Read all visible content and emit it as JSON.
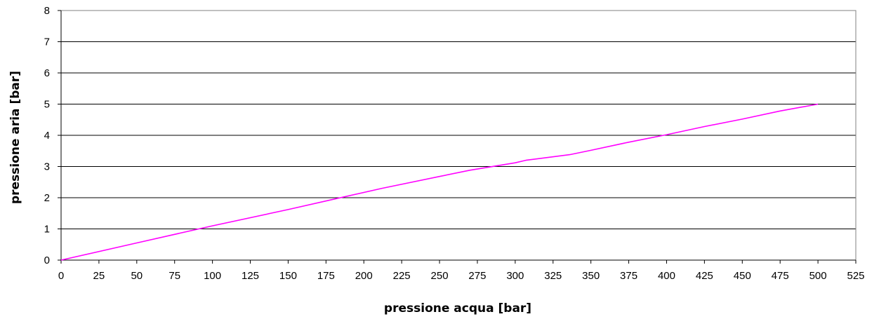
{
  "chart_data": {
    "type": "line",
    "xlabel": "pressione acqua [bar]",
    "ylabel": "pressione aria [bar]",
    "xlim": [
      0,
      525
    ],
    "ylim": [
      0,
      8
    ],
    "x_ticks": [
      0,
      25,
      50,
      75,
      100,
      125,
      150,
      175,
      200,
      225,
      250,
      275,
      300,
      325,
      350,
      375,
      400,
      425,
      450,
      475,
      500,
      525
    ],
    "x_tick_labels": [
      "0",
      "25",
      "50",
      "75",
      "100",
      "125",
      "150",
      "175",
      "200",
      "225",
      "250",
      "275",
      "300",
      "325",
      "350",
      "375",
      "400",
      "425",
      "450",
      "475",
      "500",
      "525"
    ],
    "y_ticks": [
      0,
      1,
      2,
      3,
      4,
      5,
      6,
      7,
      8
    ],
    "y_tick_labels": [
      "0",
      "1",
      "2",
      "3",
      "4",
      "5",
      "6",
      "7",
      "8"
    ],
    "grid": "horizontal",
    "legend": "none",
    "series": [
      {
        "color": "#ff00ff",
        "x": [
          0,
          50,
          100,
          150,
          180,
          212,
          250,
          270,
          300,
          307,
          336,
          350,
          375,
          400,
          425,
          450,
          475,
          500
        ],
        "y": [
          0,
          0.55,
          1.1,
          1.62,
          1.95,
          2.3,
          2.68,
          2.88,
          3.12,
          3.2,
          3.38,
          3.52,
          3.78,
          4.02,
          4.28,
          4.52,
          4.78,
          5.0
        ]
      }
    ]
  }
}
